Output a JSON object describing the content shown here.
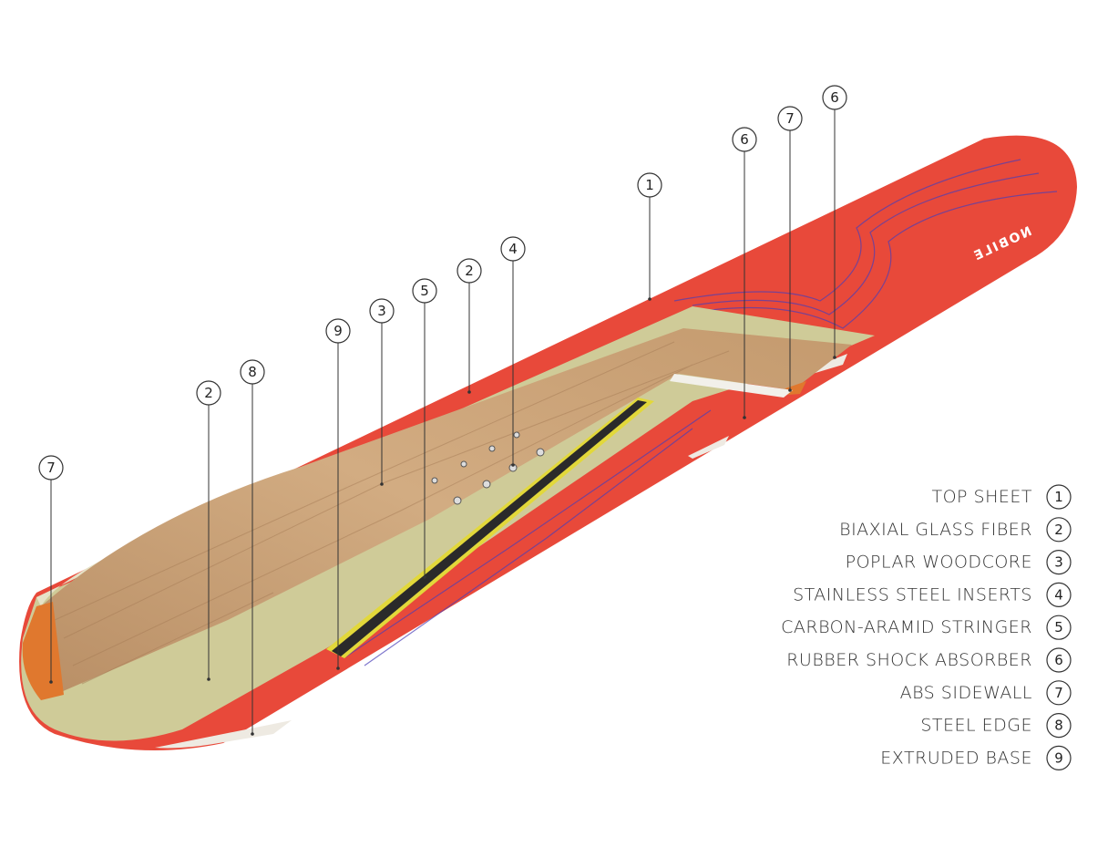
{
  "diagram": {
    "logo": "NOBILE",
    "callouts": [
      {
        "number": "7"
      },
      {
        "number": "2"
      },
      {
        "number": "8"
      },
      {
        "number": "9"
      },
      {
        "number": "3"
      },
      {
        "number": "5"
      },
      {
        "number": "2"
      },
      {
        "number": "4"
      },
      {
        "number": "1"
      },
      {
        "number": "6"
      },
      {
        "number": "7"
      },
      {
        "number": "6"
      }
    ],
    "legend": [
      {
        "label": "TOP SHEET",
        "number": "1"
      },
      {
        "label": "BIAXIAL GLASS FIBER",
        "number": "2"
      },
      {
        "label": "POPLAR WOODCORE",
        "number": "3"
      },
      {
        "label": "STAINLESS STEEL INSERTS",
        "number": "4"
      },
      {
        "label": "CARBON-ARAMID STRINGER",
        "number": "5"
      },
      {
        "label": "RUBBER SHOCK ABSORBER",
        "number": "6"
      },
      {
        "label": "ABS SIDEWALL",
        "number": "7"
      },
      {
        "label": "STEEL EDGE",
        "number": "8"
      },
      {
        "label": "EXTRUDED BASE",
        "number": "9"
      }
    ]
  }
}
